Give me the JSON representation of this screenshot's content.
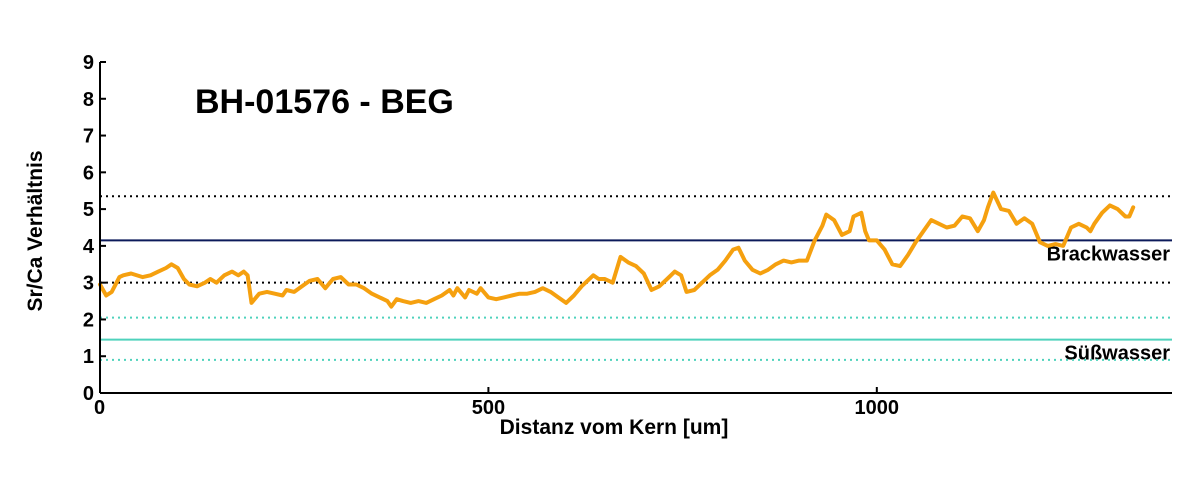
{
  "chart_data": {
    "type": "line",
    "title": "BH-01576 - BEG",
    "xlabel": "Distanz vom Kern [um]",
    "ylabel": "Sr/Ca Verhältnis",
    "xlim": [
      0,
      1380
    ],
    "ylim": [
      0,
      9
    ],
    "xticks": [
      0,
      500,
      1000
    ],
    "yticks": [
      0,
      1,
      2,
      3,
      4,
      5,
      6,
      7,
      8,
      9
    ],
    "grid": false,
    "series": [
      {
        "color": "#f5a00f",
        "x": [
          0,
          8,
          15,
          25,
          30,
          40,
          55,
          65,
          75,
          85,
          92,
          100,
          108,
          115,
          125,
          135,
          142,
          150,
          160,
          170,
          178,
          185,
          190,
          195,
          205,
          215,
          225,
          235,
          240,
          250,
          260,
          270,
          280,
          290,
          300,
          310,
          320,
          330,
          340,
          350,
          360,
          370,
          375,
          382,
          390,
          400,
          410,
          420,
          430,
          440,
          450,
          455,
          460,
          470,
          475,
          485,
          490,
          500,
          510,
          520,
          530,
          540,
          550,
          560,
          570,
          580,
          590,
          600,
          610,
          620,
          635,
          642,
          650,
          660,
          670,
          680,
          690,
          700,
          710,
          720,
          730,
          740,
          748,
          755,
          765,
          775,
          785,
          795,
          805,
          815,
          822,
          830,
          840,
          850,
          860,
          870,
          880,
          890,
          900,
          910,
          920,
          930,
          935,
          945,
          955,
          965,
          970,
          980,
          985,
          990,
          1000,
          1010,
          1020,
          1030,
          1040,
          1050,
          1060,
          1070,
          1080,
          1090,
          1100,
          1110,
          1120,
          1130,
          1138,
          1143,
          1150,
          1160,
          1170,
          1180,
          1190,
          1200,
          1210,
          1220,
          1230,
          1240,
          1250,
          1260,
          1270,
          1275,
          1280,
          1290,
          1300,
          1310,
          1320,
          1325,
          1330
        ],
        "y": [
          2.95,
          2.65,
          2.75,
          3.15,
          3.2,
          3.25,
          3.15,
          3.2,
          3.3,
          3.4,
          3.5,
          3.4,
          3.1,
          2.95,
          2.9,
          3.0,
          3.1,
          3.0,
          3.2,
          3.3,
          3.2,
          3.3,
          3.2,
          2.45,
          2.7,
          2.75,
          2.7,
          2.65,
          2.8,
          2.75,
          2.9,
          3.05,
          3.1,
          2.85,
          3.1,
          3.15,
          2.95,
          2.95,
          2.85,
          2.7,
          2.6,
          2.5,
          2.35,
          2.55,
          2.5,
          2.45,
          2.5,
          2.45,
          2.55,
          2.65,
          2.8,
          2.65,
          2.85,
          2.6,
          2.8,
          2.7,
          2.85,
          2.6,
          2.55,
          2.6,
          2.65,
          2.7,
          2.7,
          2.75,
          2.85,
          2.75,
          2.6,
          2.45,
          2.65,
          2.9,
          3.2,
          3.1,
          3.1,
          3.0,
          3.7,
          3.55,
          3.45,
          3.25,
          2.8,
          2.9,
          3.1,
          3.3,
          3.2,
          2.75,
          2.8,
          3.0,
          3.2,
          3.35,
          3.6,
          3.9,
          3.95,
          3.6,
          3.35,
          3.25,
          3.35,
          3.5,
          3.6,
          3.55,
          3.6,
          3.6,
          4.15,
          4.55,
          4.85,
          4.7,
          4.3,
          4.4,
          4.8,
          4.9,
          4.4,
          4.15,
          4.15,
          3.9,
          3.5,
          3.45,
          3.75,
          4.1,
          4.4,
          4.7,
          4.6,
          4.5,
          4.55,
          4.8,
          4.75,
          4.4,
          4.7,
          5.05,
          5.45,
          5.0,
          4.95,
          4.6,
          4.75,
          4.6,
          4.1,
          4.0,
          4.05,
          4.0,
          4.5,
          4.6,
          4.5,
          4.4,
          4.6,
          4.9,
          5.1,
          5.0,
          4.8,
          4.8,
          5.05
        ]
      }
    ],
    "reference_lines": [
      {
        "y": 5.35,
        "style": "dotted",
        "color": "#000000"
      },
      {
        "y": 4.15,
        "style": "solid",
        "color": "#0c1a5a",
        "label": "Brackwasser"
      },
      {
        "y": 3.0,
        "style": "dotted",
        "color": "#000000"
      },
      {
        "y": 2.05,
        "style": "dotted",
        "color": "#4fd2bc"
      },
      {
        "y": 1.45,
        "style": "solid",
        "color": "#4fd2bc",
        "label": "Süßwasser"
      },
      {
        "y": 0.9,
        "style": "dotted",
        "color": "#4fd2bc"
      }
    ]
  }
}
